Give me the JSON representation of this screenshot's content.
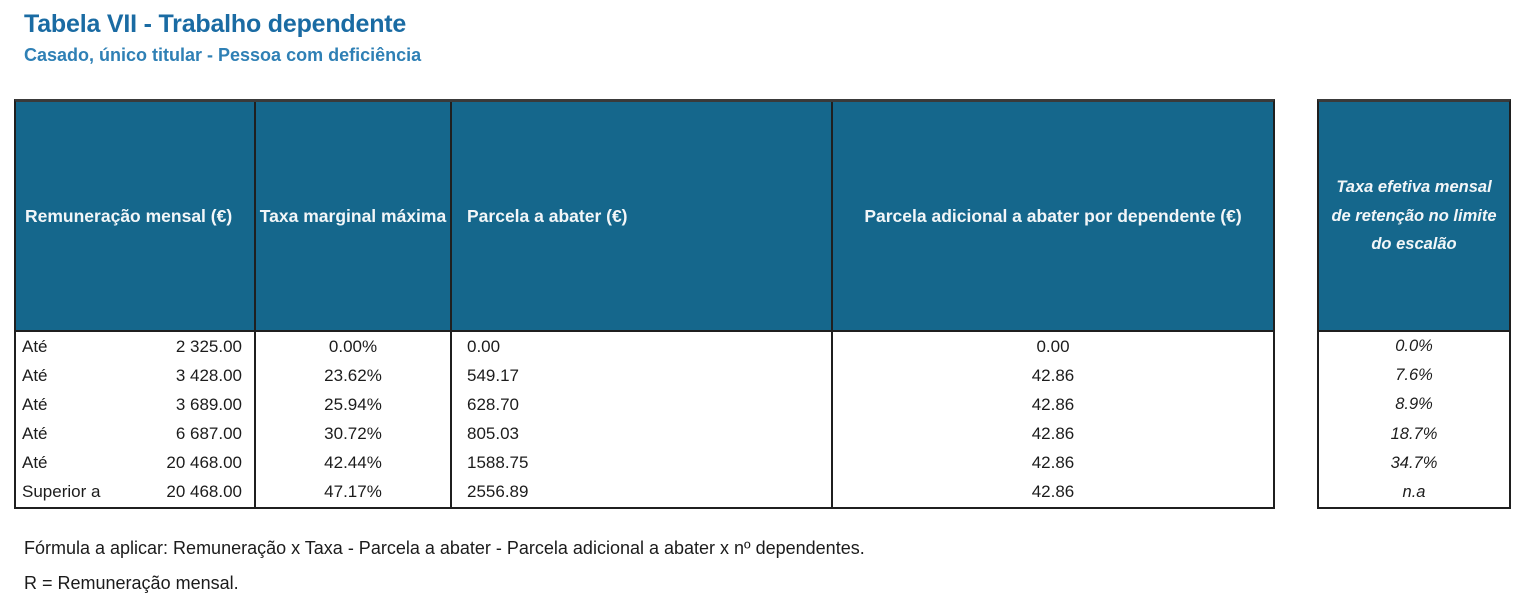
{
  "header": {
    "title": "Tabela VII - Trabalho dependente",
    "subtitle": "Casado, único titular - Pessoa com deficiência"
  },
  "colors": {
    "header_bg": "#15678c",
    "title": "#1a6ba3",
    "subtitle": "#2f80b5"
  },
  "main_table": {
    "columns": [
      "Remuneração mensal (€)",
      "Taxa marginal máxima",
      "Parcela a abater (€)",
      "Parcela adicional a abater por dependente (€)"
    ],
    "rows": [
      {
        "prefix": "Até",
        "limit": "2 325.00",
        "rate": "0.00%",
        "deduction": "0.00",
        "dependent": "0.00"
      },
      {
        "prefix": "Até",
        "limit": "3 428.00",
        "rate": "23.62%",
        "deduction": "549.17",
        "dependent": "42.86"
      },
      {
        "prefix": "Até",
        "limit": "3 689.00",
        "rate": "25.94%",
        "deduction": "628.70",
        "dependent": "42.86"
      },
      {
        "prefix": "Até",
        "limit": "6 687.00",
        "rate": "30.72%",
        "deduction": "805.03",
        "dependent": "42.86"
      },
      {
        "prefix": "Até",
        "limit": "20 468.00",
        "rate": "42.44%",
        "deduction": "1588.75",
        "dependent": "42.86"
      },
      {
        "prefix": "Superior a",
        "limit": "20 468.00",
        "rate": "47.17%",
        "deduction": "2556.89",
        "dependent": "42.86"
      }
    ]
  },
  "side_table": {
    "header": "Taxa efetiva mensal de retenção no limite do escalão",
    "values": [
      "0.0%",
      "7.6%",
      "8.9%",
      "18.7%",
      "34.7%",
      "n.a"
    ]
  },
  "footer": {
    "line1": "Fórmula a aplicar: Remuneração x Taxa - Parcela a abater - Parcela adicional a abater x nº dependentes.",
    "line2": "R = Remuneração mensal."
  }
}
